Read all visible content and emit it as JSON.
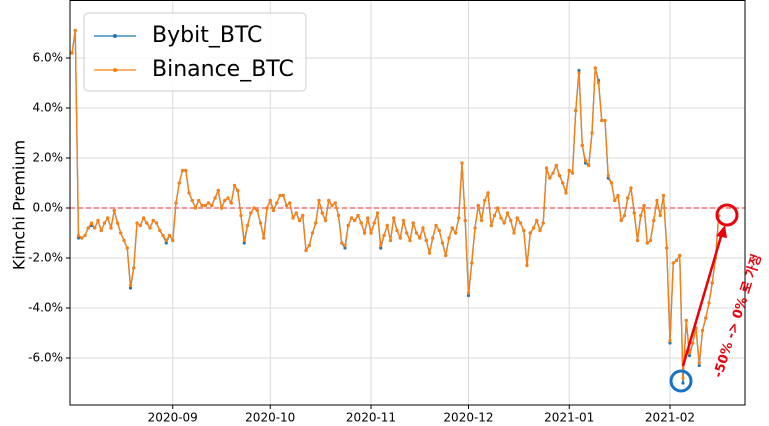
{
  "chart_data": {
    "type": "line",
    "ylabel": "Kimchi Premium",
    "annotation": "-50% -> 0% 로 가정",
    "legend": "upper left",
    "grid": true,
    "hline": 0,
    "hline_color": "#e0302f",
    "ylim": [
      -7.88,
      8.32
    ],
    "yticks": [
      {
        "value": -6,
        "label": "-6.0%"
      },
      {
        "value": -4,
        "label": "-4.0%"
      },
      {
        "value": -2,
        "label": "-2.0%"
      },
      {
        "value": 0,
        "label": "0.0%"
      },
      {
        "value": 2,
        "label": "2.0%"
      },
      {
        "value": 4,
        "label": "4.0%"
      },
      {
        "value": 6,
        "label": "6.0%"
      }
    ],
    "categories": [
      null,
      null,
      null,
      null,
      null,
      null,
      null,
      null,
      null,
      null,
      null,
      null,
      null,
      null,
      null,
      null,
      null,
      null,
      null,
      null,
      null,
      null,
      null,
      null,
      null,
      null,
      null,
      null,
      null,
      null,
      null,
      "2020-09",
      null,
      null,
      null,
      null,
      null,
      null,
      null,
      null,
      null,
      null,
      null,
      null,
      null,
      null,
      null,
      null,
      null,
      null,
      null,
      null,
      null,
      null,
      null,
      null,
      null,
      null,
      null,
      null,
      null,
      "2020-10",
      null,
      null,
      null,
      null,
      null,
      null,
      null,
      null,
      null,
      null,
      null,
      null,
      null,
      null,
      null,
      null,
      null,
      null,
      null,
      null,
      null,
      null,
      null,
      null,
      null,
      null,
      null,
      null,
      null,
      null,
      "2020-11",
      null,
      null,
      null,
      null,
      null,
      null,
      null,
      null,
      null,
      null,
      null,
      null,
      null,
      null,
      null,
      null,
      null,
      null,
      null,
      null,
      null,
      null,
      null,
      null,
      null,
      null,
      null,
      null,
      null,
      "2020-12",
      null,
      null,
      null,
      null,
      null,
      null,
      null,
      null,
      null,
      null,
      null,
      null,
      null,
      null,
      null,
      null,
      null,
      null,
      null,
      null,
      null,
      null,
      null,
      null,
      null,
      null,
      null,
      null,
      null,
      null,
      "2021-01",
      null,
      null,
      null,
      null,
      null,
      null,
      null,
      null,
      null,
      null,
      null,
      null,
      null,
      null,
      null,
      null,
      null,
      null,
      null,
      null,
      null,
      null,
      null,
      null,
      null,
      null,
      null,
      null,
      null,
      null,
      "2021-02",
      null,
      null,
      null,
      null,
      null,
      null,
      null,
      null,
      null,
      null,
      null,
      null,
      null,
      null,
      null
    ],
    "series": [
      {
        "name": "Bybit_BTC",
        "color": "#1f77b4",
        "values": [
          6.2,
          7.1,
          -1.2,
          -1.2,
          -1.1,
          -0.8,
          -0.7,
          -0.8,
          -0.5,
          -0.9,
          -0.6,
          -0.4,
          -0.8,
          -0.1,
          -0.6,
          -1.0,
          -1.3,
          -1.6,
          -3.2,
          -2.4,
          -0.6,
          -0.7,
          -0.4,
          -0.6,
          -0.8,
          -0.5,
          -0.6,
          -0.9,
          -1.1,
          -1.4,
          -1.1,
          -1.3,
          0.2,
          1.0,
          1.5,
          1.5,
          0.6,
          0.3,
          0.0,
          0.3,
          0.1,
          0.1,
          0.2,
          0.1,
          0.4,
          0.7,
          0.0,
          0.3,
          0.4,
          0.2,
          0.9,
          0.7,
          -0.3,
          -1.4,
          -0.7,
          -0.2,
          0.0,
          -0.1,
          -0.6,
          -1.2,
          0.0,
          0.3,
          -0.1,
          0.2,
          0.5,
          0.5,
          0.1,
          0.2,
          -0.4,
          -0.2,
          -0.5,
          -0.3,
          -1.7,
          -1.5,
          -1.0,
          -0.6,
          0.3,
          -0.2,
          -0.5,
          0.3,
          0.1,
          0.2,
          -0.3,
          -1.4,
          -1.6,
          -0.7,
          -0.4,
          -0.5,
          -0.3,
          -0.6,
          -1.0,
          -0.4,
          -1.0,
          -0.6,
          -0.2,
          -1.6,
          -1.1,
          -0.7,
          -1.3,
          -0.4,
          -0.9,
          -1.2,
          -0.5,
          -1.0,
          -1.3,
          -0.6,
          -1.0,
          -1.2,
          -0.8,
          -1.3,
          -1.8,
          -1.2,
          -0.7,
          -0.9,
          -1.4,
          -1.9,
          -1.2,
          -0.8,
          -1.0,
          -0.4,
          1.8,
          -0.5,
          -3.5,
          -2.2,
          -0.8,
          0.1,
          -0.5,
          0.3,
          0.6,
          -0.7,
          -0.3,
          0.0,
          -0.4,
          -0.6,
          -0.2,
          -0.5,
          -1.0,
          -0.4,
          -0.6,
          -0.9,
          -2.3,
          -1.0,
          -0.8,
          -0.5,
          -0.9,
          -0.6,
          1.6,
          1.2,
          1.4,
          1.7,
          1.3,
          1.0,
          0.6,
          1.5,
          1.4,
          3.9,
          5.5,
          2.5,
          1.8,
          1.7,
          3.0,
          5.6,
          5.1,
          3.5,
          3.5,
          1.2,
          1.0,
          0.3,
          0.5,
          -0.5,
          -0.3,
          0.4,
          0.8,
          -0.2,
          -1.3,
          -0.3,
          0.1,
          -1.4,
          -1.3,
          -0.5,
          0.3,
          -0.3,
          0.5,
          -1.6,
          -5.4,
          -2.2,
          -2.1,
          -1.9,
          -7.0,
          -4.5,
          -5.9,
          -5.4,
          -4.8,
          -6.3,
          -4.9,
          -4.4,
          -3.8,
          -3.0,
          -2.0,
          -0.3
        ]
      },
      {
        "name": "Binance_BTC",
        "color": "#ff7f0e",
        "values": [
          6.2,
          7.1,
          -1.1,
          -1.2,
          -1.1,
          -0.8,
          -0.6,
          -0.8,
          -0.5,
          -0.9,
          -0.6,
          -0.4,
          -0.8,
          -0.1,
          -0.6,
          -1.0,
          -1.3,
          -1.6,
          -3.1,
          -2.4,
          -0.6,
          -0.7,
          -0.4,
          -0.6,
          -0.8,
          -0.5,
          -0.6,
          -0.9,
          -1.1,
          -1.3,
          -1.1,
          -1.3,
          0.2,
          1.0,
          1.5,
          1.5,
          0.6,
          0.3,
          0.0,
          0.3,
          0.1,
          0.1,
          0.2,
          0.1,
          0.4,
          0.7,
          0.0,
          0.3,
          0.4,
          0.2,
          0.9,
          0.7,
          -0.3,
          -1.3,
          -0.7,
          -0.2,
          0.0,
          -0.1,
          -0.6,
          -1.2,
          0.0,
          0.3,
          -0.1,
          0.2,
          0.5,
          0.5,
          0.1,
          0.2,
          -0.4,
          -0.2,
          -0.5,
          -0.3,
          -1.7,
          -1.5,
          -1.0,
          -0.6,
          0.3,
          -0.2,
          -0.5,
          0.3,
          0.1,
          0.2,
          -0.3,
          -1.4,
          -1.5,
          -0.7,
          -0.4,
          -0.5,
          -0.3,
          -0.6,
          -1.0,
          -0.4,
          -1.0,
          -0.6,
          -0.2,
          -1.5,
          -1.1,
          -0.7,
          -1.3,
          -0.4,
          -0.9,
          -1.2,
          -0.5,
          -1.0,
          -1.3,
          -0.6,
          -1.0,
          -1.2,
          -0.8,
          -1.3,
          -1.8,
          -1.2,
          -0.7,
          -0.9,
          -1.4,
          -1.9,
          -1.2,
          -0.8,
          -1.0,
          -0.4,
          1.8,
          -0.5,
          -3.4,
          -2.2,
          -0.8,
          0.1,
          -0.5,
          0.3,
          0.6,
          -0.7,
          -0.3,
          0.0,
          -0.4,
          -0.6,
          -0.2,
          -0.5,
          -1.0,
          -0.4,
          -0.6,
          -0.9,
          -2.3,
          -1.0,
          -0.8,
          -0.5,
          -0.9,
          -0.6,
          1.6,
          1.2,
          1.4,
          1.7,
          1.3,
          1.0,
          0.6,
          1.5,
          1.4,
          3.9,
          5.4,
          2.5,
          1.9,
          1.7,
          3.0,
          5.6,
          5.0,
          3.5,
          3.5,
          1.3,
          1.0,
          0.3,
          0.5,
          -0.5,
          -0.3,
          0.4,
          0.8,
          -0.2,
          -1.3,
          -0.3,
          0.1,
          -1.4,
          -1.3,
          -0.5,
          0.3,
          -0.3,
          0.5,
          -1.6,
          -5.3,
          -2.2,
          -2.1,
          -1.9,
          -6.8,
          -4.5,
          -5.8,
          -5.4,
          -4.8,
          -6.2,
          -4.9,
          -4.4,
          -3.8,
          -3.0,
          -2.0,
          -0.3
        ]
      }
    ]
  }
}
